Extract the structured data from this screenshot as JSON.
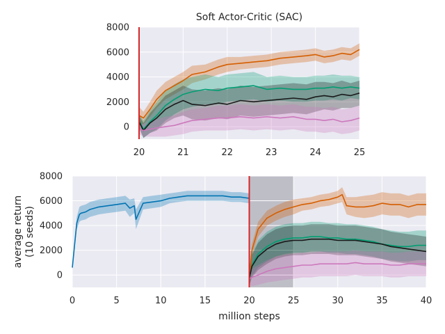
{
  "chart_data": [
    {
      "type": "line",
      "title": "Soft Actor-Critic (SAC)",
      "xlabel": "",
      "ylabel": "",
      "xlim": [
        20,
        25
      ],
      "ylim": [
        -1000,
        8000
      ],
      "xticks": [
        "20",
        "21",
        "22",
        "23",
        "24",
        "25"
      ],
      "yticks": [
        "8000",
        "6000",
        "4000",
        "2000",
        "0"
      ],
      "grid": true,
      "background": "#eaeaf2",
      "vline": {
        "x": 20,
        "color": "#d62728"
      },
      "series": [
        {
          "color": "#d55e00",
          "x": [
            20.0,
            20.1,
            20.25,
            20.4,
            20.6,
            20.8,
            21.0,
            21.2,
            21.5,
            21.8,
            22.0,
            22.3,
            22.6,
            22.9,
            23.2,
            23.5,
            23.8,
            24.0,
            24.2,
            24.4,
            24.6,
            24.8,
            25.0
          ],
          "y": [
            900,
            700,
            1400,
            2200,
            2900,
            3300,
            3700,
            4200,
            4400,
            4800,
            5000,
            5100,
            5200,
            5300,
            5500,
            5600,
            5700,
            5800,
            5600,
            5700,
            5900,
            5800,
            6200
          ],
          "band": [
            700,
            500,
            600,
            700,
            700,
            700,
            700,
            700,
            600,
            600,
            600,
            500,
            500,
            500,
            500,
            500,
            500,
            500,
            500,
            500,
            500,
            500,
            500
          ]
        },
        {
          "color": "#029e73",
          "x": [
            20.0,
            20.1,
            20.25,
            20.4,
            20.6,
            20.8,
            21.0,
            21.2,
            21.5,
            21.8,
            22.0,
            22.3,
            22.6,
            22.9,
            23.2,
            23.5,
            23.8,
            24.0,
            24.2,
            24.4,
            24.6,
            24.8,
            25.0
          ],
          "y": [
            500,
            -200,
            400,
            900,
            1700,
            2200,
            2600,
            2800,
            3000,
            2900,
            3100,
            3200,
            3300,
            3000,
            3100,
            3000,
            3000,
            3100,
            3100,
            3200,
            3100,
            3200,
            3100
          ],
          "band": [
            500,
            700,
            900,
            1100,
            1200,
            1200,
            1200,
            1200,
            1200,
            1100,
            1100,
            1100,
            1100,
            1000,
            1000,
            1000,
            1000,
            1000,
            1000,
            1000,
            1000,
            900,
            900
          ]
        },
        {
          "color": "#1a1a1a",
          "x": [
            20.0,
            20.1,
            20.25,
            20.4,
            20.6,
            20.8,
            21.0,
            21.2,
            21.5,
            21.8,
            22.0,
            22.3,
            22.6,
            22.9,
            23.2,
            23.5,
            23.8,
            24.0,
            24.2,
            24.4,
            24.6,
            24.8,
            25.0
          ],
          "y": [
            400,
            -300,
            300,
            700,
            1400,
            1800,
            2100,
            1800,
            1700,
            1900,
            1800,
            2100,
            2000,
            2100,
            2200,
            2300,
            2200,
            2400,
            2500,
            2400,
            2600,
            2500,
            2700
          ],
          "band": [
            500,
            600,
            800,
            1000,
            1100,
            1100,
            1200,
            1200,
            1200,
            1200,
            1200,
            1200,
            1200,
            1200,
            1200,
            1200,
            1200,
            1200,
            1100,
            1100,
            1100,
            1000,
            1000
          ]
        },
        {
          "color": "#cc78bc",
          "x": [
            20.0,
            20.1,
            20.25,
            20.4,
            20.6,
            20.8,
            21.0,
            21.2,
            21.5,
            21.8,
            22.0,
            22.3,
            22.6,
            22.9,
            23.2,
            23.5,
            23.8,
            24.0,
            24.2,
            24.4,
            24.6,
            24.8,
            25.0
          ],
          "y": [
            -200,
            -300,
            -200,
            -100,
            0,
            100,
            300,
            500,
            600,
            700,
            700,
            800,
            700,
            800,
            700,
            800,
            600,
            600,
            500,
            600,
            400,
            500,
            700
          ],
          "band": [
            400,
            500,
            600,
            700,
            800,
            800,
            900,
            900,
            900,
            1000,
            1000,
            1000,
            1000,
            1000,
            1000,
            1000,
            1000,
            1000,
            1000,
            1000,
            1000,
            1000,
            1000
          ]
        }
      ]
    },
    {
      "type": "line",
      "title": "",
      "xlabel": "million steps",
      "ylabel": "average return\n(10 seeds)",
      "ylabel_lines": [
        "average return",
        "(10 seeds)"
      ],
      "xlim": [
        0,
        40
      ],
      "ylim": [
        -1000,
        8000
      ],
      "xticks": [
        "0",
        "5",
        "10",
        "15",
        "20",
        "25",
        "30",
        "35",
        "40"
      ],
      "yticks": [
        "8000",
        "6000",
        "4000",
        "2000",
        "0"
      ],
      "grid": true,
      "background": "#eaeaf2",
      "vline": {
        "x": 20,
        "color": "#d62728"
      },
      "shaded_region": {
        "x": [
          20,
          25
        ],
        "color": "#bcbcc4"
      },
      "series": [
        {
          "color": "#0173b2",
          "x": [
            0,
            0.2,
            0.5,
            0.8,
            1.0,
            1.5,
            2,
            3,
            4,
            5,
            6,
            6.5,
            7,
            7.2,
            8,
            9,
            10,
            11,
            12,
            13,
            14,
            15,
            16,
            17,
            18,
            19,
            20
          ],
          "y": [
            600,
            2000,
            4200,
            4900,
            5000,
            5100,
            5300,
            5500,
            5600,
            5700,
            5800,
            5400,
            5600,
            4500,
            5800,
            5900,
            6000,
            6200,
            6300,
            6400,
            6400,
            6400,
            6400,
            6400,
            6300,
            6300,
            6200
          ],
          "band": [
            200,
            300,
            500,
            600,
            600,
            600,
            600,
            600,
            600,
            600,
            600,
            700,
            600,
            800,
            500,
            500,
            500,
            400,
            400,
            400,
            400,
            400,
            400,
            400,
            400,
            400,
            400
          ]
        },
        {
          "color": "#d55e00",
          "x": [
            20.0,
            20.3,
            21,
            22,
            23,
            24,
            25,
            26,
            27,
            28,
            29,
            30,
            30.5,
            31,
            32,
            33,
            34,
            35,
            36,
            37,
            38,
            39,
            40
          ],
          "y": [
            -300,
            2000,
            3700,
            4600,
            5000,
            5300,
            5500,
            5700,
            5800,
            6000,
            6100,
            6300,
            6500,
            5600,
            5500,
            5500,
            5600,
            5800,
            5700,
            5700,
            5500,
            5700,
            5700
          ],
          "band": [
            500,
            500,
            600,
            600,
            600,
            600,
            600,
            500,
            500,
            500,
            500,
            500,
            600,
            700,
            800,
            900,
            900,
            900,
            900,
            900,
            900,
            900,
            900
          ]
        },
        {
          "color": "#029e73",
          "x": [
            20.0,
            20.3,
            21,
            22,
            23,
            24,
            25,
            26,
            27,
            28,
            29,
            30,
            31,
            32,
            33,
            34,
            35,
            36,
            37,
            38,
            39,
            40
          ],
          "y": [
            -300,
            800,
            1700,
            2300,
            2700,
            2900,
            3000,
            3000,
            3100,
            3100,
            3000,
            3000,
            2900,
            2900,
            2800,
            2700,
            2500,
            2400,
            2300,
            2300,
            2400,
            2400
          ],
          "band": [
            600,
            900,
            1100,
            1200,
            1200,
            1200,
            1200,
            1200,
            1200,
            1200,
            1200,
            1200,
            1200,
            1200,
            1200,
            1200,
            1200,
            1200,
            1200,
            1200,
            1200,
            1200
          ]
        },
        {
          "color": "#1a1a1a",
          "x": [
            20.0,
            20.3,
            21,
            22,
            23,
            24,
            25,
            26,
            27,
            28,
            29,
            30,
            31,
            32,
            33,
            34,
            35,
            36,
            37,
            38,
            39,
            40
          ],
          "y": [
            -300,
            700,
            1500,
            2100,
            2500,
            2700,
            2800,
            2800,
            2900,
            2900,
            2900,
            2800,
            2800,
            2800,
            2700,
            2600,
            2500,
            2300,
            2200,
            2100,
            2000,
            1900
          ],
          "band": [
            600,
            900,
            1100,
            1200,
            1200,
            1200,
            1200,
            1200,
            1200,
            1200,
            1200,
            1200,
            1200,
            1200,
            1200,
            1200,
            1200,
            1200,
            1200,
            1200,
            1200,
            1200
          ]
        },
        {
          "color": "#cc78bc",
          "x": [
            20.0,
            20.3,
            21,
            22,
            23,
            24,
            25,
            26,
            27,
            28,
            29,
            30,
            31,
            32,
            33,
            34,
            35,
            36,
            37,
            38,
            39,
            40
          ],
          "y": [
            -300,
            -200,
            0,
            300,
            500,
            600,
            700,
            800,
            800,
            900,
            900,
            900,
            900,
            1000,
            900,
            900,
            900,
            800,
            800,
            900,
            900,
            900
          ],
          "band": [
            500,
            700,
            800,
            900,
            1000,
            1000,
            1000,
            1000,
            1000,
            1000,
            1000,
            1000,
            1000,
            1000,
            1000,
            1000,
            1000,
            1000,
            1000,
            1000,
            1000,
            1000
          ]
        }
      ]
    }
  ]
}
